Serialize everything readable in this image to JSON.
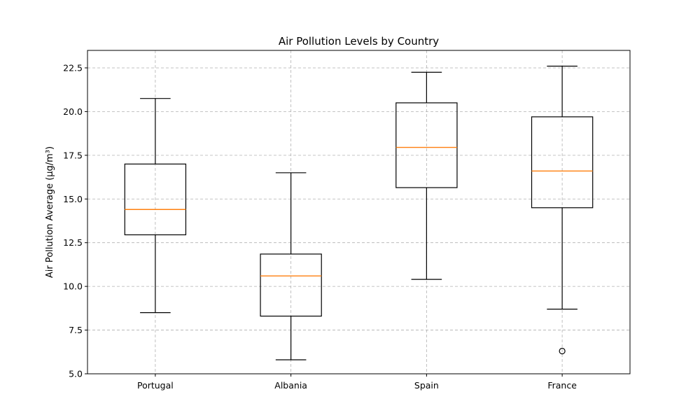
{
  "chart_data": {
    "type": "box",
    "title": "Air Pollution Levels by Country",
    "xlabel": "",
    "ylabel": "Air Pollution Average (µg/m³)",
    "ylim": [
      5.0,
      23.5
    ],
    "yticks": [
      5.0,
      7.5,
      10.0,
      12.5,
      15.0,
      17.5,
      20.0,
      22.5
    ],
    "ytick_labels": [
      "5.0",
      "7.5",
      "10.0",
      "12.5",
      "15.0",
      "17.5",
      "20.0",
      "22.5"
    ],
    "grid": true,
    "categories": [
      "Portugal",
      "Albania",
      "Spain",
      "France"
    ],
    "boxes": [
      {
        "label": "Portugal",
        "whisker_low": 8.5,
        "q1": 12.95,
        "median": 14.4,
        "q3": 17.0,
        "whisker_high": 20.75,
        "outliers": []
      },
      {
        "label": "Albania",
        "whisker_low": 5.8,
        "q1": 8.3,
        "median": 10.6,
        "q3": 11.85,
        "whisker_high": 16.5,
        "outliers": []
      },
      {
        "label": "Spain",
        "whisker_low": 10.4,
        "q1": 15.65,
        "median": 17.95,
        "q3": 20.5,
        "whisker_high": 22.25,
        "outliers": []
      },
      {
        "label": "France",
        "whisker_low": 8.7,
        "q1": 14.5,
        "median": 16.6,
        "q3": 19.7,
        "whisker_high": 22.6,
        "outliers": [
          6.3
        ]
      }
    ],
    "colors": {
      "box": "#000000",
      "median": "#ff7f0e",
      "grid": "#b0b0b0"
    }
  }
}
